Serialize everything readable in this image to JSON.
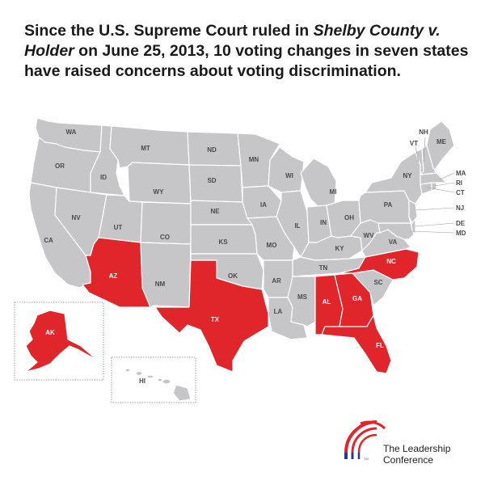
{
  "headline": {
    "part1": "Since the U.S. Supreme Court ruled in ",
    "case_name": "Shelby County v. Holder",
    "part2": " on June 25, 2013, 10 voting changes in seven states have raised concerns about voting discrimination."
  },
  "colors": {
    "highlight": "#e0252b",
    "base": "#c6c6c8",
    "text": "#1a1a1a"
  },
  "highlighted_states": [
    "AZ",
    "TX",
    "AL",
    "GA",
    "FL",
    "NC",
    "AK"
  ],
  "labels": {
    "WA": "WA",
    "OR": "OR",
    "CA": "CA",
    "ID": "ID",
    "NV": "NV",
    "MT": "MT",
    "WY": "WY",
    "UT": "UT",
    "AZ": "AZ",
    "CO": "CO",
    "NM": "NM",
    "ND": "ND",
    "SD": "SD",
    "NE": "NE",
    "KS": "KS",
    "OK": "OK",
    "TX": "TX",
    "MN": "MN",
    "IA": "IA",
    "MO": "MO",
    "AR": "AR",
    "LA": "LA",
    "WI": "WI",
    "IL": "IL",
    "MI": "MI",
    "IN": "IN",
    "OH": "OH",
    "KY": "KY",
    "TN": "TN",
    "MS": "MS",
    "AL": "AL",
    "GA": "GA",
    "FL": "FL",
    "SC": "SC",
    "NC": "NC",
    "VA": "VA",
    "WV": "WV",
    "PA": "PA",
    "NY": "NY",
    "VT": "VT",
    "NH": "NH",
    "ME": "ME",
    "MA": "MA",
    "RI": "RI",
    "CT": "CT",
    "NJ": "NJ",
    "DE": "DE",
    "MD": "MD",
    "AK": "AK",
    "HI": "HI"
  },
  "logo": {
    "line1": "The Leadership",
    "line2": "Conference",
    "tm": "TM",
    "icon": "arch-logo-icon"
  }
}
